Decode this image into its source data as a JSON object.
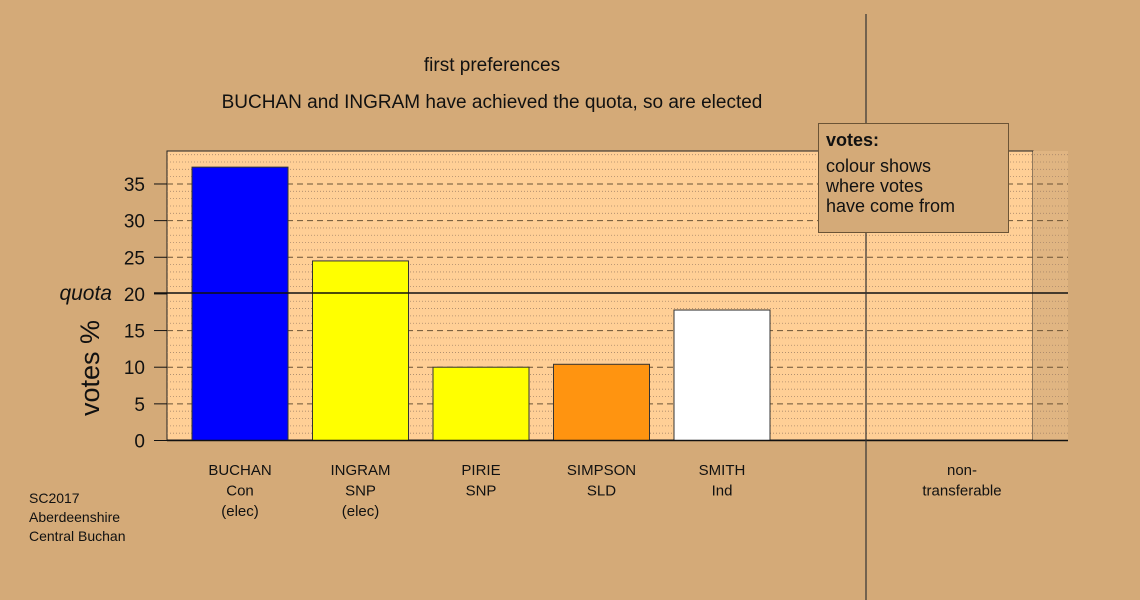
{
  "title": "first preferences",
  "subtitle": "BUCHAN and INGRAM have achieved the quota, so are elected",
  "legend": {
    "title": "votes:",
    "lines": [
      "colour shows",
      "where votes",
      "have come from"
    ]
  },
  "footnote": [
    "SC2017",
    "Aberdeenshire",
    "Central Buchan"
  ],
  "chart_data": {
    "type": "bar",
    "ylabel": "votes %",
    "ylim": [
      0,
      39.5
    ],
    "yticks": [
      0,
      5,
      10,
      15,
      20,
      25,
      30,
      35
    ],
    "quota": 20,
    "quota_label": "quota",
    "grid": true,
    "categories": [
      {
        "lines": [
          "BUCHAN",
          "Con",
          "(elec)"
        ],
        "value": 37.3,
        "color": "#0000FF"
      },
      {
        "lines": [
          "INGRAM",
          "SNP",
          "(elec)"
        ],
        "value": 24.5,
        "color": "#FFFF00"
      },
      {
        "lines": [
          "PIRIE",
          "SNP"
        ],
        "value": 10.0,
        "color": "#FFFF00"
      },
      {
        "lines": [
          "SIMPSON",
          "SLD"
        ],
        "value": 10.4,
        "color": "#FF9410"
      },
      {
        "lines": [
          "SMITH",
          "Ind"
        ],
        "value": 17.8,
        "color": "#FFFFFF"
      }
    ],
    "nontransferable": {
      "lines": [
        "non-",
        "transferable"
      ],
      "value": 0
    }
  }
}
